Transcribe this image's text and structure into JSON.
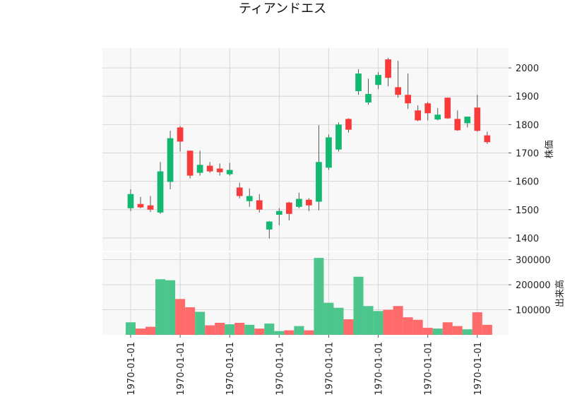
{
  "chart_data": {
    "type": "candlestick",
    "title": "ティアンドエス",
    "ylabel_price": "株価",
    "ylabel_volume": "出来高",
    "x_tick_labels": [
      "1970-01-01",
      "1970-01-01",
      "1970-01-01",
      "1970-01-01",
      "1970-01-01",
      "1970-01-01",
      "1970-01-01",
      "1970-01-01"
    ],
    "x_tick_positions": [
      0,
      5,
      10,
      15,
      20,
      25,
      30,
      35
    ],
    "price_ylim": [
      1355,
      2070
    ],
    "price_ticks": [
      1400,
      1500,
      1600,
      1700,
      1800,
      1900,
      2000
    ],
    "volume_ylim": [
      0,
      330000
    ],
    "volume_ticks": [
      100000,
      200000,
      300000
    ],
    "colors": {
      "up": "#10b870",
      "down": "#f93a3a",
      "up_volume": "#4cc68d",
      "down_volume": "#ff6a6a",
      "panel_bg": "#f8f8f8",
      "grid": "#d6d6d6"
    },
    "candles": [
      {
        "open": 1505,
        "high": 1572,
        "low": 1495,
        "close": 1555,
        "volume": 50000
      },
      {
        "open": 1520,
        "high": 1545,
        "low": 1505,
        "close": 1508,
        "volume": 25000
      },
      {
        "open": 1515,
        "high": 1548,
        "low": 1492,
        "close": 1500,
        "volume": 32000
      },
      {
        "open": 1490,
        "high": 1668,
        "low": 1485,
        "close": 1635,
        "volume": 222000
      },
      {
        "open": 1598,
        "high": 1778,
        "low": 1572,
        "close": 1752,
        "volume": 218000
      },
      {
        "open": 1790,
        "high": 1795,
        "low": 1705,
        "close": 1740,
        "volume": 143000
      },
      {
        "open": 1708,
        "high": 1708,
        "low": 1610,
        "close": 1620,
        "volume": 110000
      },
      {
        "open": 1630,
        "high": 1708,
        "low": 1620,
        "close": 1658,
        "volume": 92000
      },
      {
        "open": 1655,
        "high": 1668,
        "low": 1630,
        "close": 1635,
        "volume": 38000
      },
      {
        "open": 1645,
        "high": 1663,
        "low": 1620,
        "close": 1632,
        "volume": 48000
      },
      {
        "open": 1625,
        "high": 1665,
        "low": 1620,
        "close": 1640,
        "volume": 42000
      },
      {
        "open": 1578,
        "high": 1595,
        "low": 1540,
        "close": 1548,
        "volume": 48000
      },
      {
        "open": 1530,
        "high": 1575,
        "low": 1510,
        "close": 1548,
        "volume": 40000
      },
      {
        "open": 1533,
        "high": 1555,
        "low": 1490,
        "close": 1500,
        "volume": 25000
      },
      {
        "open": 1430,
        "high": 1460,
        "low": 1398,
        "close": 1458,
        "volume": 45000
      },
      {
        "open": 1482,
        "high": 1505,
        "low": 1445,
        "close": 1495,
        "volume": 15000
      },
      {
        "open": 1525,
        "high": 1528,
        "low": 1462,
        "close": 1485,
        "volume": 18000
      },
      {
        "open": 1510,
        "high": 1560,
        "low": 1505,
        "close": 1538,
        "volume": 35000
      },
      {
        "open": 1535,
        "high": 1540,
        "low": 1495,
        "close": 1515,
        "volume": 18000
      },
      {
        "open": 1528,
        "high": 1798,
        "low": 1498,
        "close": 1668,
        "volume": 307000
      },
      {
        "open": 1648,
        "high": 1765,
        "low": 1640,
        "close": 1755,
        "volume": 128000
      },
      {
        "open": 1712,
        "high": 1808,
        "low": 1705,
        "close": 1800,
        "volume": 108000
      },
      {
        "open": 1820,
        "high": 1822,
        "low": 1772,
        "close": 1782,
        "volume": 62000
      },
      {
        "open": 1918,
        "high": 1995,
        "low": 1905,
        "close": 1980,
        "volume": 232000
      },
      {
        "open": 1878,
        "high": 1962,
        "low": 1870,
        "close": 1908,
        "volume": 115000
      },
      {
        "open": 1940,
        "high": 1985,
        "low": 1925,
        "close": 1975,
        "volume": 95000
      },
      {
        "open": 2030,
        "high": 2035,
        "low": 1935,
        "close": 1965,
        "volume": 100000
      },
      {
        "open": 1932,
        "high": 2025,
        "low": 1895,
        "close": 1905,
        "volume": 115000
      },
      {
        "open": 1905,
        "high": 1980,
        "low": 1855,
        "close": 1875,
        "volume": 70000
      },
      {
        "open": 1850,
        "high": 1868,
        "low": 1812,
        "close": 1815,
        "volume": 60000
      },
      {
        "open": 1875,
        "high": 1880,
        "low": 1815,
        "close": 1840,
        "volume": 28000
      },
      {
        "open": 1818,
        "high": 1858,
        "low": 1815,
        "close": 1835,
        "volume": 25000
      },
      {
        "open": 1895,
        "high": 1895,
        "low": 1820,
        "close": 1822,
        "volume": 50000
      },
      {
        "open": 1820,
        "high": 1850,
        "low": 1778,
        "close": 1780,
        "volume": 35000
      },
      {
        "open": 1805,
        "high": 1828,
        "low": 1790,
        "close": 1828,
        "volume": 22000
      },
      {
        "open": 1860,
        "high": 1905,
        "low": 1775,
        "close": 1778,
        "volume": 90000
      },
      {
        "open": 1762,
        "high": 1775,
        "low": 1732,
        "close": 1738,
        "volume": 40000
      }
    ]
  }
}
